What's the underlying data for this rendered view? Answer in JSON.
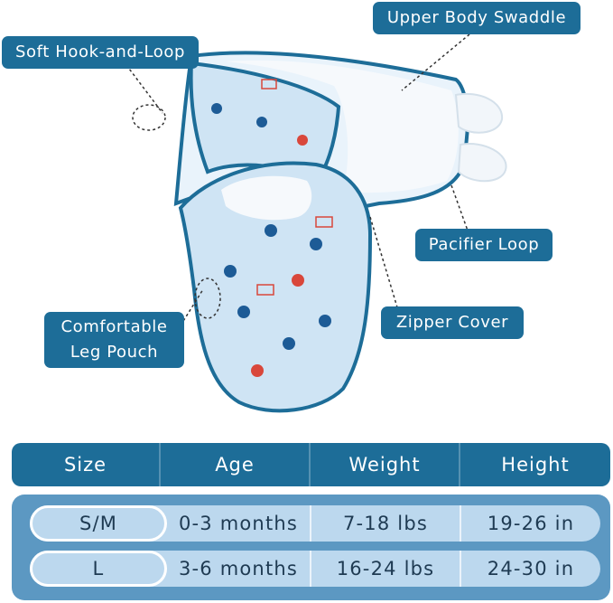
{
  "callouts": {
    "upper_body": "Upper Body Swaddle",
    "hook_loop": "Soft Hook-and-Loop",
    "pacifier": "Pacifier Loop",
    "zipper": "Zipper Cover",
    "leg_pouch_line1": "Comfortable",
    "leg_pouch_line2": "Leg Pouch"
  },
  "size_table": {
    "headers": [
      "Size",
      "Age",
      "Weight",
      "Height"
    ],
    "rows": [
      {
        "size": "S/M",
        "age": "0-3 months",
        "weight": "7-18 lbs",
        "height": "19-26 in"
      },
      {
        "size": "L",
        "age": "3-6 months",
        "weight": "16-24 lbs",
        "height": "24-30 in"
      }
    ]
  },
  "colors": {
    "accent": "#1d6d98",
    "fabric": "#cfe4f4",
    "trim": "#1d6d98",
    "table_body": "#5c98c2",
    "row_fill": "#bcd8ee"
  }
}
